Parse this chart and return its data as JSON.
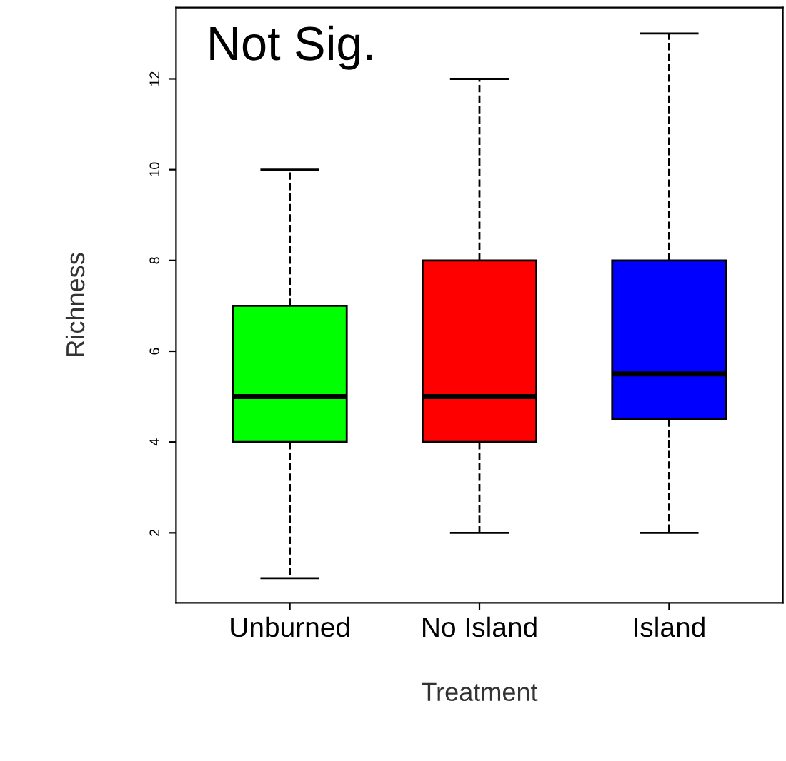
{
  "chart_data": {
    "type": "box",
    "xlabel": "Treatment",
    "ylabel": "Richness",
    "categories": [
      "Unburned",
      "No Island",
      "Island"
    ],
    "colors": [
      "#00ff00",
      "#ff0000",
      "#0000ff"
    ],
    "boxes": [
      {
        "low": 1,
        "q1": 4,
        "median": 5,
        "q3": 7,
        "high": 10
      },
      {
        "low": 2,
        "q1": 4,
        "median": 5,
        "q3": 8,
        "high": 12
      },
      {
        "low": 2,
        "q1": 4.5,
        "median": 5.5,
        "q3": 8,
        "high": 13
      }
    ],
    "ylim": [
      0.46,
      13.57
    ],
    "yticks": [
      2,
      4,
      6,
      8,
      10,
      12
    ],
    "grid": false,
    "annotations": [
      "Not Sig."
    ]
  }
}
